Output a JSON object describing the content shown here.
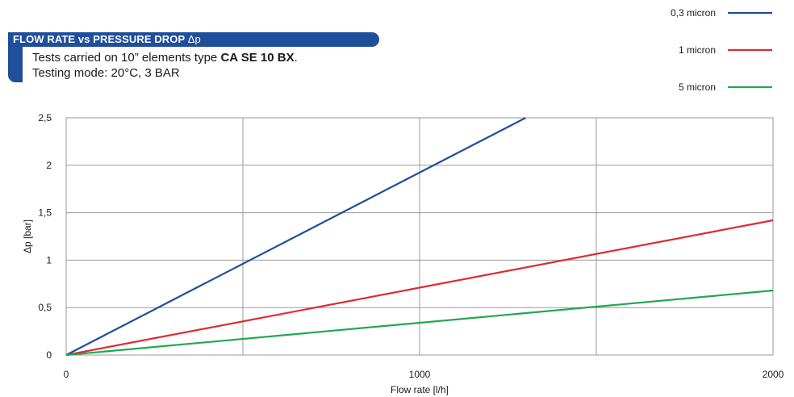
{
  "header": {
    "title": "FLOW RATE vs PRESSURE DROP",
    "title_symbol": "Δp",
    "accent_color": "#1f4e9b"
  },
  "subtitle": {
    "line1_prefix": "Tests carried on 10” elements type ",
    "line1_bold": "CA SE 10 BX",
    "line1_suffix": ".",
    "line2": "Testing mode: 20°C, 3 BAR"
  },
  "chart_data": {
    "type": "line",
    "title": "FLOW RATE vs PRESSURE DROP Δp",
    "xlabel": "Flow rate [l/h]",
    "ylabel": "Δp [bar]",
    "xlim": [
      0,
      2000
    ],
    "ylim": [
      0,
      2.5
    ],
    "x_ticks": [
      0,
      1000,
      2000
    ],
    "x_tick_labels": [
      "0",
      "1000",
      "2000"
    ],
    "x_grid": [
      0,
      500,
      1000,
      1500,
      2000
    ],
    "y_ticks": [
      0,
      0.5,
      1,
      1.5,
      2,
      2.5
    ],
    "y_tick_labels": [
      "0",
      "0,5",
      "1",
      "1,5",
      "2",
      "2,5"
    ],
    "grid": true,
    "legend_position": "top-right",
    "series": [
      {
        "name": "0,3 micron",
        "color": "#1f4e9b",
        "x": [
          0,
          1300
        ],
        "y": [
          0,
          2.5
        ]
      },
      {
        "name": "1 micron",
        "color": "#e02a2f",
        "x": [
          0,
          2000
        ],
        "y": [
          0,
          1.42
        ]
      },
      {
        "name": "5 micron",
        "color": "#1fa84f",
        "x": [
          0,
          2000
        ],
        "y": [
          0,
          0.68
        ]
      }
    ]
  }
}
